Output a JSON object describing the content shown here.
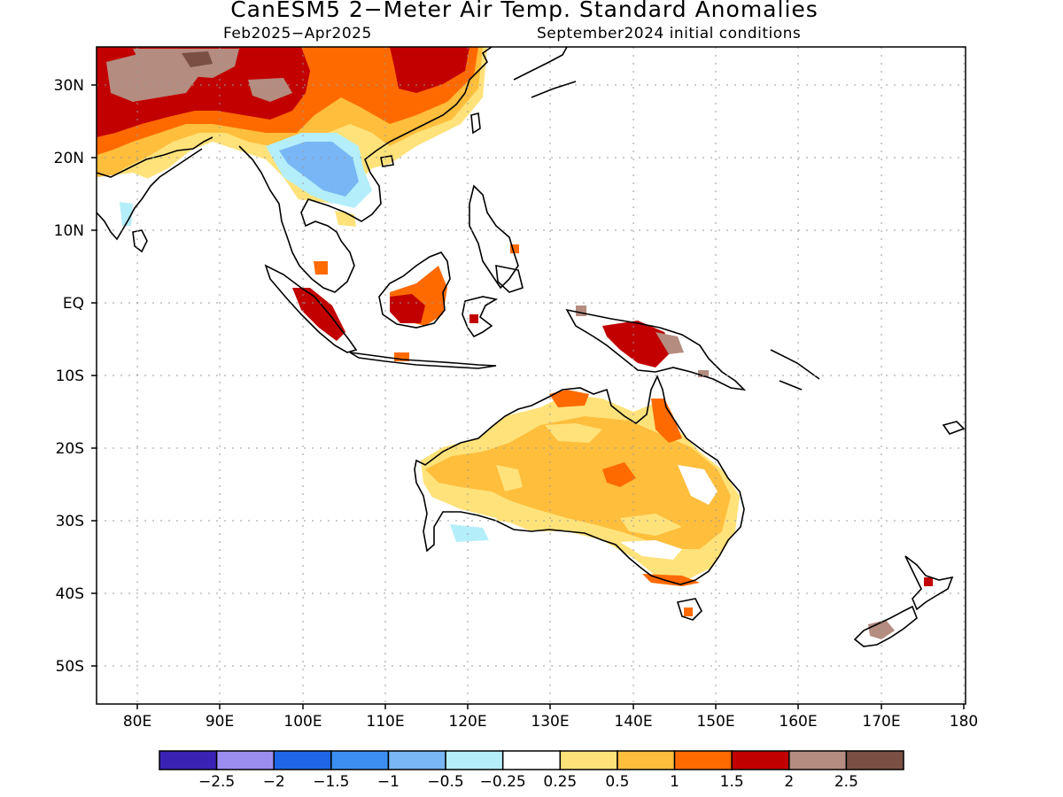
{
  "title": "CanESM5 2−Meter Air Temp. Standard Anomalies",
  "subtitle_left": "Feb2025−Apr2025",
  "subtitle_right": "September2024 initial conditions",
  "axes": {
    "lat_labels": [
      "30N",
      "20N",
      "10N",
      "EQ",
      "10S",
      "20S",
      "30S",
      "40S",
      "50S"
    ],
    "lon_labels": [
      "80E",
      "90E",
      "100E",
      "110E",
      "120E",
      "130E",
      "140E",
      "150E",
      "160E",
      "170E",
      "180"
    ]
  },
  "colorbar": {
    "colors": [
      "#3a22b4",
      "#9b8df0",
      "#1f66e6",
      "#3b8ff0",
      "#78b6f5",
      "#b4eefa",
      "#ffffff",
      "#ffe27a",
      "#ffbe3c",
      "#ff6a00",
      "#c20000",
      "#b48c80",
      "#7a5044"
    ],
    "labels": [
      "−2.5",
      "−2",
      "−1.5",
      "−1",
      "−0.5",
      "−0.25",
      "0.25",
      "0.5",
      "1",
      "1.5",
      "2",
      "2.5"
    ]
  }
}
